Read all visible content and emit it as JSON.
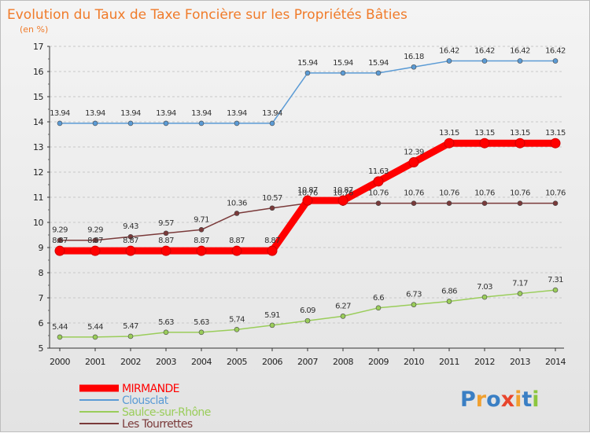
{
  "chart_data": {
    "type": "line",
    "title": "Evolution du Taux de Taxe Foncière sur les Propriétés Bâties",
    "subtitle": "(en %)",
    "x": [
      2000,
      2001,
      2002,
      2003,
      2004,
      2005,
      2006,
      2007,
      2008,
      2009,
      2010,
      2011,
      2012,
      2013,
      2014
    ],
    "ylim": [
      5,
      17
    ],
    "yticks": [
      5,
      6,
      7,
      8,
      9,
      10,
      11,
      12,
      13,
      14,
      15,
      16,
      17
    ],
    "series": [
      {
        "name": "Clousclat",
        "color": "#5b9bd5",
        "values": [
          13.94,
          13.94,
          13.94,
          13.94,
          13.94,
          13.94,
          13.94,
          15.94,
          15.94,
          15.94,
          16.18,
          16.42,
          16.42,
          16.42,
          16.42
        ]
      },
      {
        "name": "Les Tourrettes",
        "color": "#7a3a3a",
        "values": [
          9.29,
          9.29,
          9.43,
          9.57,
          9.71,
          10.36,
          10.57,
          10.76,
          10.76,
          10.76,
          10.76,
          10.76,
          10.76,
          10.76,
          10.76
        ]
      },
      {
        "name": "Saulce-sur-Rhône",
        "color": "#9acd5a",
        "values": [
          5.44,
          5.44,
          5.47,
          5.63,
          5.63,
          5.74,
          5.91,
          6.09,
          6.27,
          6.6,
          6.73,
          6.86,
          7.03,
          7.17,
          7.31
        ]
      },
      {
        "name": "MIRMANDE",
        "color": "#ff0000",
        "values": [
          8.87,
          8.87,
          8.87,
          8.87,
          8.87,
          8.87,
          8.87,
          10.87,
          10.87,
          11.63,
          12.39,
          13.15,
          13.15,
          13.15,
          13.15
        ]
      }
    ]
  },
  "legend": [
    {
      "label": "MIRMANDE",
      "color": "#ff0000"
    },
    {
      "label": "Clousclat",
      "color": "#5b9bd5"
    },
    {
      "label": "Saulce-sur-Rhône",
      "color": "#9acd5a"
    },
    {
      "label": "Les Tourrettes",
      "color": "#7a3a3a"
    }
  ],
  "logo": {
    "text": "Proxiti"
  }
}
